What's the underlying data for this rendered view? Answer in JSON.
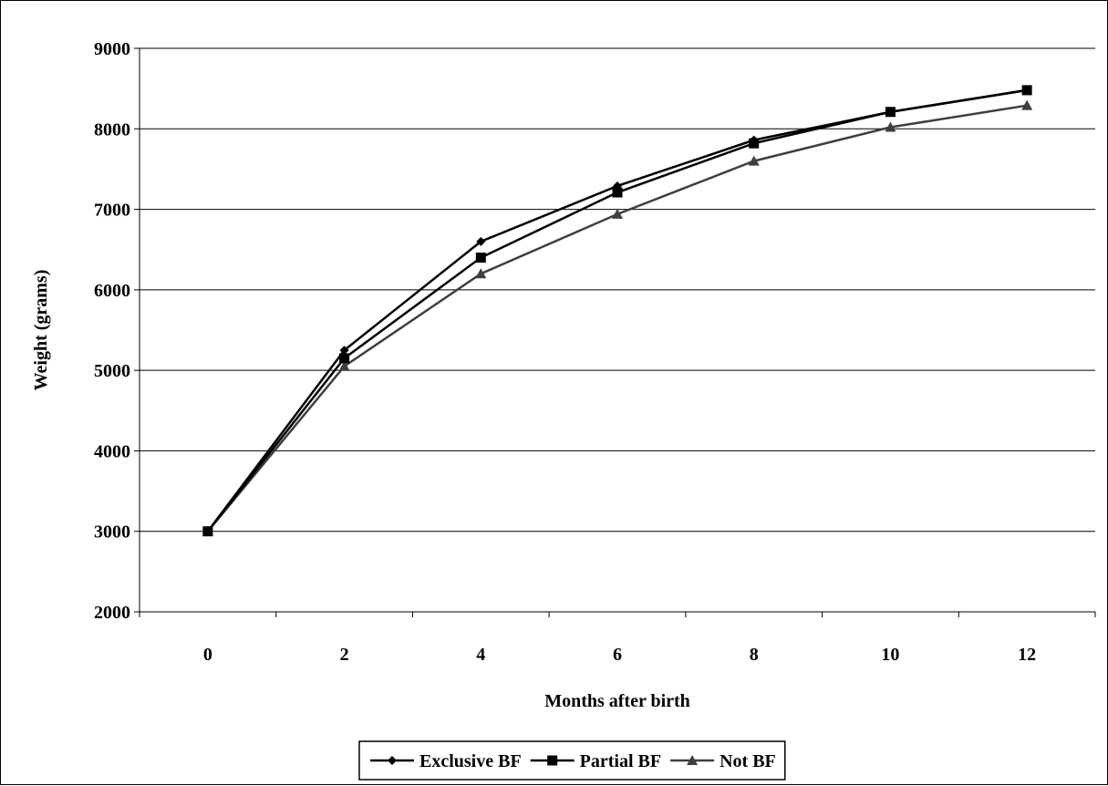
{
  "chart_data": {
    "type": "line",
    "title": "",
    "xlabel": "Months after birth",
    "ylabel": "Weight (grams)",
    "categories": [
      "0",
      "2",
      "4",
      "6",
      "8",
      "10",
      "12"
    ],
    "ylim": [
      2000,
      9000
    ],
    "yticks": [
      "2000",
      "3000",
      "4000",
      "5000",
      "6000",
      "7000",
      "8000",
      "9000"
    ],
    "grid": "horizontal",
    "legend_position": "bottom",
    "series": [
      {
        "name": "Exclusive BF",
        "marker": "diamond",
        "color": "#000000",
        "values": [
          3000,
          5250,
          6600,
          7290,
          7860,
          8210,
          8480
        ]
      },
      {
        "name": "Partial BF",
        "marker": "square",
        "color": "#000000",
        "values": [
          3000,
          5150,
          6400,
          7210,
          7820,
          8210,
          8480
        ]
      },
      {
        "name": "Not BF",
        "marker": "triangle",
        "color": "#3f3f3f",
        "values": [
          3000,
          5050,
          6200,
          6940,
          7600,
          8020,
          8290
        ]
      }
    ]
  }
}
